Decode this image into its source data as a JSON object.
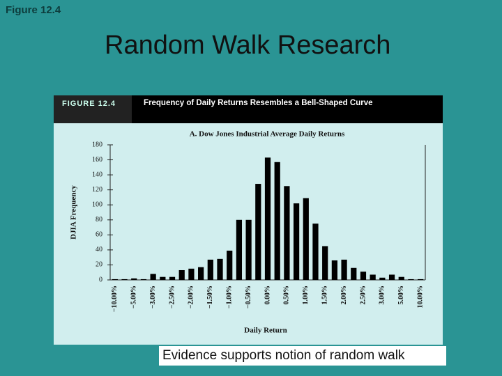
{
  "header_label": "Figure 12.4",
  "slide_title": "Random Walk Research",
  "caption": "Evidence supports notion of random walk",
  "chart_data": {
    "type": "bar",
    "figure_label": "FIGURE 12.4",
    "title": "Frequency of Daily Returns Resembles a Bell-Shaped Curve",
    "subtitle": "A. Dow Jones Industrial Average Daily Returns",
    "xlabel": "Daily Return",
    "ylabel": "DJIA Frequency",
    "categories": [
      "−10.00%",
      null,
      "−5.00%",
      null,
      "−3.00%",
      null,
      "−2.50%",
      null,
      "−2.00%",
      null,
      "−1.50%",
      null,
      "−1.00%",
      null,
      "−0.50%",
      null,
      "0.00%",
      null,
      "0.50%",
      null,
      "1.00%",
      null,
      "1.50%",
      null,
      "2.00%",
      null,
      "2.50%",
      null,
      "3.00%",
      null,
      "5.00%",
      null,
      "10.00%"
    ],
    "values": [
      1,
      1,
      2,
      1,
      8,
      4,
      4,
      13,
      15,
      17,
      27,
      28,
      39,
      80,
      80,
      128,
      163,
      157,
      125,
      102,
      109,
      75,
      45,
      26,
      27,
      16,
      11,
      7,
      3,
      7,
      4,
      1,
      1
    ],
    "color": "#000000",
    "ylim": [
      0,
      180
    ],
    "yticks": [
      0,
      20,
      40,
      60,
      80,
      100,
      120,
      140,
      160,
      180
    ]
  }
}
